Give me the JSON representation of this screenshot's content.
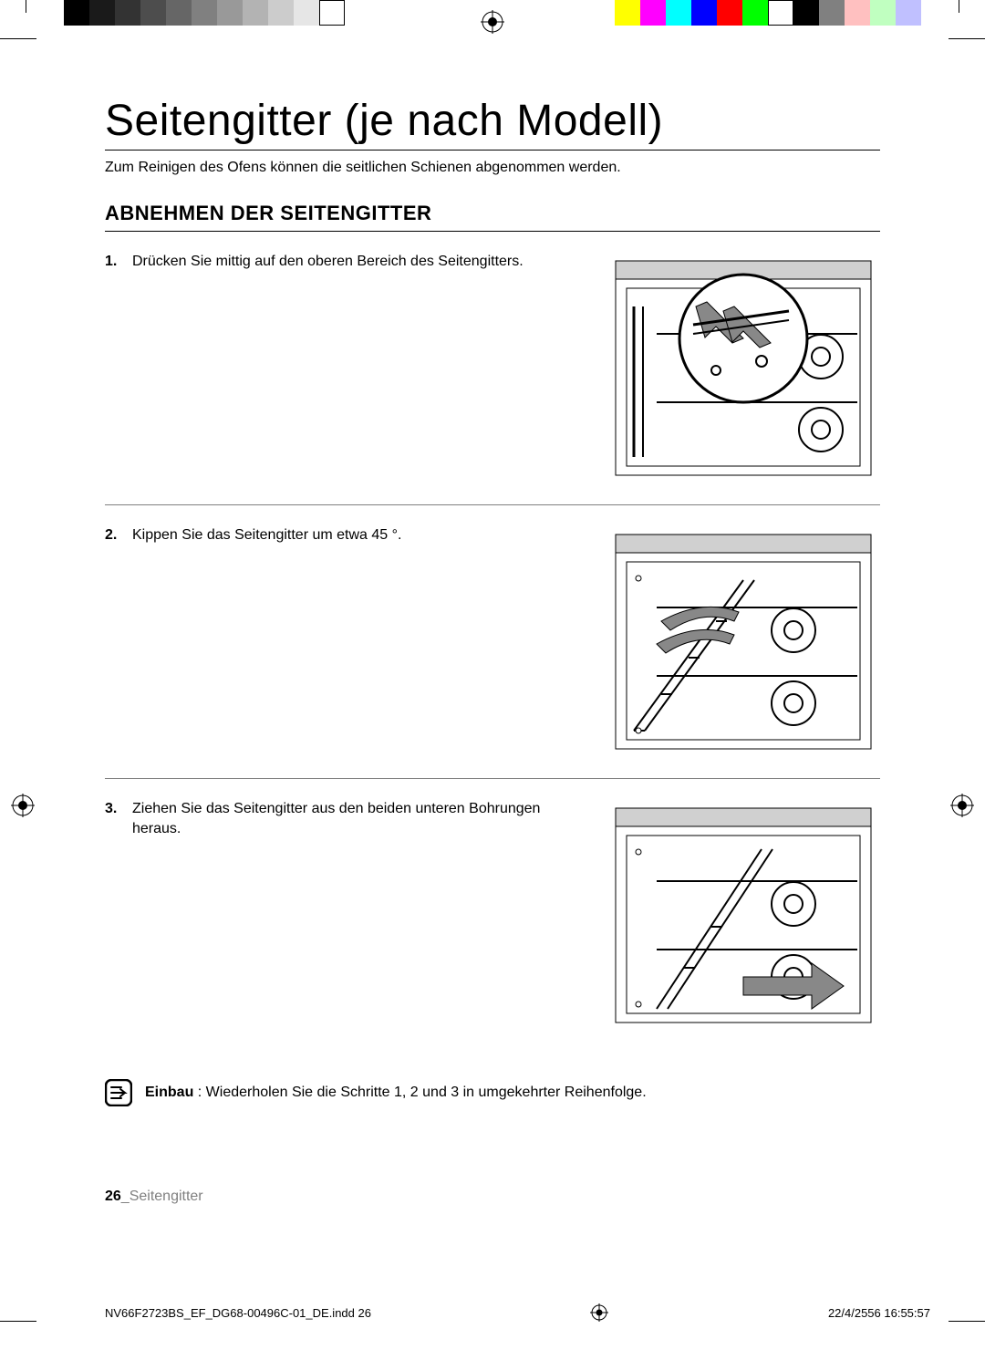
{
  "colorbars": {
    "left": [
      "#000000",
      "#1a1a1a",
      "#333333",
      "#4d4d4d",
      "#666666",
      "#808080",
      "#999999",
      "#b3b3b3",
      "#cccccc",
      "#e6e6e6",
      "#ffffff"
    ],
    "right": [
      "#ffff00",
      "#ff00ff",
      "#00ffff",
      "#0000ff",
      "#ff0000",
      "#00ff00",
      "#ffffff",
      "#000000",
      "#808080",
      "#ffc0c0",
      "#c0ffc0",
      "#c0c0ff"
    ]
  },
  "title": "Seitengitter (je nach Modell)",
  "intro": "Zum Reinigen des Ofens können die seitlichen Schienen abgenommen werden.",
  "section_heading": "ABNEHMEN DER SEITENGITTER",
  "steps": [
    {
      "num": "1.",
      "text": "Drücken Sie mittig auf den oberen Bereich des Seitengitters."
    },
    {
      "num": "2.",
      "text": "Kippen Sie das Seitengitter um etwa 45 °."
    },
    {
      "num": "3.",
      "text": "Ziehen Sie das Seitengitter aus den beiden unteren Bohrungen heraus."
    }
  ],
  "note": {
    "bold": "Einbau",
    "rest": " : Wiederholen Sie die Schritte 1, 2 und 3 in umgekehrter Reihenfolge."
  },
  "page_number": "26",
  "page_label": "_Seitengitter",
  "print_file": "NV66F2723BS_EF_DG68-00496C-01_DE.indd   26",
  "print_stamp": "22/4/2556   16:55:57"
}
